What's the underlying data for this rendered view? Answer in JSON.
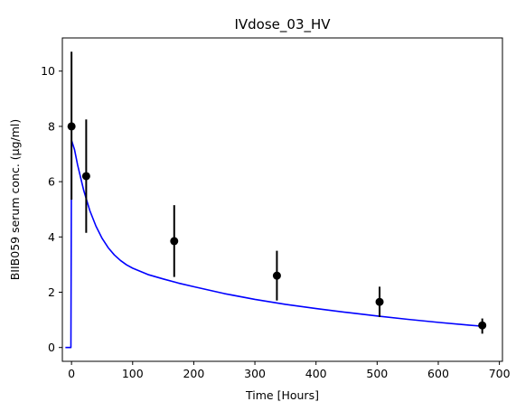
{
  "chart_data": {
    "type": "scatter",
    "title": "IVdose_03_HV",
    "xlabel": "Time [Hours]",
    "ylabel": "BIIB059 serum conc. (µg/ml)",
    "xlim": [
      -15,
      705
    ],
    "ylim": [
      -0.5,
      11.2
    ],
    "xticks": [
      0,
      100,
      200,
      300,
      400,
      500,
      600,
      700
    ],
    "yticks": [
      0,
      2,
      4,
      6,
      8,
      10
    ],
    "grid": false,
    "legend": "none",
    "colors": {
      "observed": "#000000",
      "model": "#0000ff"
    },
    "series": [
      {
        "kind": "errorbar",
        "x": [
          0,
          24,
          168,
          336,
          504,
          672
        ],
        "y": [
          8.0,
          6.2,
          3.85,
          2.6,
          1.65,
          0.8
        ],
        "y_low": [
          5.35,
          4.15,
          2.55,
          1.7,
          1.1,
          0.5
        ],
        "y_high": [
          10.7,
          8.25,
          5.15,
          3.5,
          2.2,
          1.05
        ]
      },
      {
        "kind": "line",
        "x": [
          -10,
          -1,
          0,
          5,
          10,
          20,
          30,
          40,
          50,
          60,
          70,
          80,
          90,
          100,
          125,
          150,
          175,
          200,
          250,
          300,
          350,
          400,
          450,
          500,
          550,
          600,
          650,
          672
        ],
        "y": [
          0,
          0,
          7.5,
          7.15,
          6.6,
          5.68,
          4.95,
          4.39,
          3.95,
          3.61,
          3.35,
          3.15,
          2.99,
          2.87,
          2.64,
          2.48,
          2.33,
          2.2,
          1.95,
          1.74,
          1.56,
          1.41,
          1.27,
          1.14,
          1.02,
          0.91,
          0.81,
          0.77
        ]
      }
    ]
  }
}
